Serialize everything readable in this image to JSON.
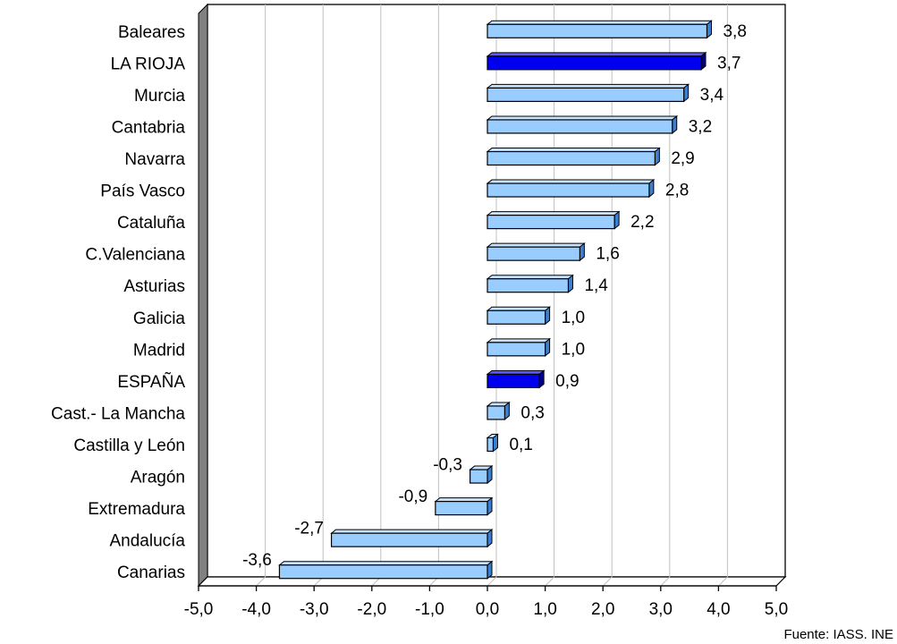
{
  "chart_data": {
    "type": "bar",
    "orientation": "horizontal",
    "categories": [
      "Baleares",
      "LA RIOJA",
      "Murcia",
      "Cantabria",
      "Navarra",
      "País Vasco",
      "Cataluña",
      "C.Valenciana",
      "Asturias",
      "Galicia",
      "Madrid",
      "ESPAÑA",
      "Cast.- La Mancha",
      "Castilla y León",
      "Aragón",
      "Extremadura",
      "Andalucía",
      "Canarias"
    ],
    "values": [
      3.8,
      3.7,
      3.4,
      3.2,
      2.9,
      2.8,
      2.2,
      1.6,
      1.4,
      1.0,
      1.0,
      0.9,
      0.3,
      0.1,
      -0.3,
      -0.9,
      -2.7,
      -3.6
    ],
    "value_labels": [
      "3,8",
      "3,7",
      "3,4",
      "3,2",
      "2,9",
      "2,8",
      "2,2",
      "1,6",
      "1,4",
      "1,0",
      "1,0",
      "0,9",
      "0,3",
      "0,1",
      "-0,3",
      "-0,9",
      "-2,7",
      "-3,6"
    ],
    "highlighted": [
      "LA RIOJA",
      "ESPAÑA"
    ],
    "xlim": [
      -5,
      5
    ],
    "xticks": [
      -5,
      -4,
      -3,
      -2,
      -1,
      0,
      1,
      2,
      3,
      4,
      5
    ],
    "xtick_labels": [
      "-5,0",
      "-4,0",
      "-3,0",
      "-2,0",
      "-1,0",
      "0,0",
      "1,0",
      "2,0",
      "3,0",
      "4,0",
      "5,0"
    ],
    "grid": true,
    "title": "",
    "xlabel": "",
    "ylabel": "",
    "source_note": "Fuente: IASS. INE"
  },
  "colors": {
    "bar": "#99ccff",
    "bar_highlight": "#0000ee",
    "bar_top": "#c6e2ff",
    "bar_side": "#3a7fd0",
    "bar_highlight_top": "#5a5aff",
    "bar_highlight_side": "#00008a",
    "wall_side": "#808080",
    "grid": "#c0c0c0",
    "axis": "#000000"
  }
}
